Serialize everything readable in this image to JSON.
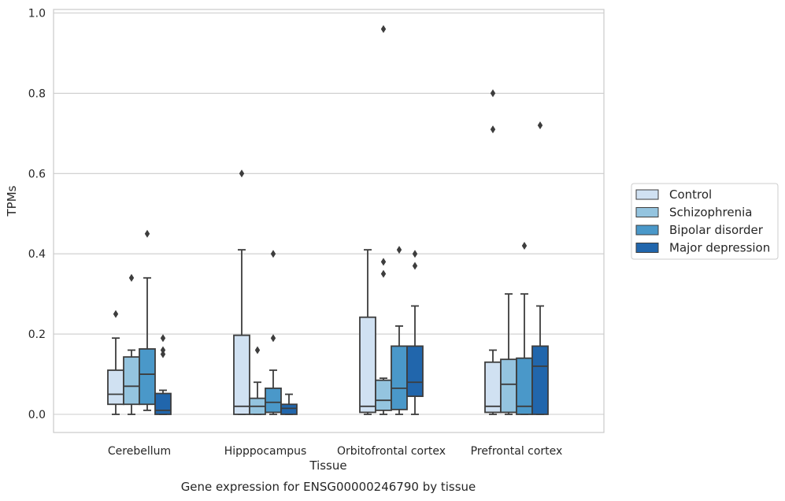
{
  "chart_data": {
    "type": "box",
    "xlabel": "Tissue",
    "ylabel": "TPMs",
    "caption": "Gene expression for ENSG00000246790 by tissue",
    "ylim": [
      -0.045,
      1.01
    ],
    "yticks": [
      0.0,
      0.2,
      0.4,
      0.6,
      0.8,
      1.0
    ],
    "ytick_labels": [
      "0.0",
      "0.2",
      "0.4",
      "0.6",
      "0.8",
      "1.0"
    ],
    "grid": "horizontal",
    "legend_position": "right",
    "categories": [
      "Cerebellum",
      "Hipppocampus",
      "Orbitofrontal cortex",
      "Prefrontal cortex"
    ],
    "series": [
      {
        "name": "Control",
        "color": "#d0e1f2",
        "boxes": [
          {
            "whisker_low": 0.0,
            "q1": 0.025,
            "median": 0.05,
            "q3": 0.11,
            "whisker_high": 0.19,
            "outliers": [
              0.25
            ]
          },
          {
            "whisker_low": 0.0,
            "q1": 0.0,
            "median": 0.02,
            "q3": 0.197,
            "whisker_high": 0.41,
            "outliers": [
              0.6
            ]
          },
          {
            "whisker_low": 0.0,
            "q1": 0.005,
            "median": 0.02,
            "q3": 0.242,
            "whisker_high": 0.41,
            "outliers": []
          },
          {
            "whisker_low": 0.0,
            "q1": 0.005,
            "median": 0.02,
            "q3": 0.13,
            "whisker_high": 0.16,
            "outliers": [
              0.71,
              0.8
            ]
          }
        ]
      },
      {
        "name": "Schizophrenia",
        "color": "#94c4df",
        "boxes": [
          {
            "whisker_low": 0.0,
            "q1": 0.025,
            "median": 0.07,
            "q3": 0.143,
            "whisker_high": 0.16,
            "outliers": [
              0.34
            ]
          },
          {
            "whisker_low": 0.0,
            "q1": 0.0,
            "median": 0.02,
            "q3": 0.04,
            "whisker_high": 0.08,
            "outliers": [
              0.16
            ]
          },
          {
            "whisker_low": 0.0,
            "q1": 0.01,
            "median": 0.035,
            "q3": 0.085,
            "whisker_high": 0.09,
            "outliers": [
              0.35,
              0.38,
              0.96
            ]
          },
          {
            "whisker_low": 0.0,
            "q1": 0.005,
            "median": 0.075,
            "q3": 0.137,
            "whisker_high": 0.3,
            "outliers": []
          }
        ]
      },
      {
        "name": "Bipolar disorder",
        "color": "#4a98c9",
        "boxes": [
          {
            "whisker_low": 0.01,
            "q1": 0.025,
            "median": 0.1,
            "q3": 0.163,
            "whisker_high": 0.34,
            "outliers": [
              0.45
            ]
          },
          {
            "whisker_low": 0.0,
            "q1": 0.005,
            "median": 0.03,
            "q3": 0.065,
            "whisker_high": 0.11,
            "outliers": [
              0.19,
              0.4
            ]
          },
          {
            "whisker_low": 0.0,
            "q1": 0.012,
            "median": 0.065,
            "q3": 0.17,
            "whisker_high": 0.22,
            "outliers": [
              0.41
            ]
          },
          {
            "whisker_low": 0.0,
            "q1": 0.0,
            "median": 0.02,
            "q3": 0.14,
            "whisker_high": 0.3,
            "outliers": [
              0.42
            ]
          }
        ]
      },
      {
        "name": "Major depression",
        "color": "#2166ac",
        "boxes": [
          {
            "whisker_low": 0.0,
            "q1": 0.0,
            "median": 0.01,
            "q3": 0.052,
            "whisker_high": 0.06,
            "outliers": [
              0.15,
              0.16,
              0.19
            ]
          },
          {
            "whisker_low": 0.0,
            "q1": 0.0,
            "median": 0.015,
            "q3": 0.025,
            "whisker_high": 0.05,
            "outliers": []
          },
          {
            "whisker_low": 0.0,
            "q1": 0.045,
            "median": 0.08,
            "q3": 0.17,
            "whisker_high": 0.27,
            "outliers": [
              0.37,
              0.4
            ]
          },
          {
            "whisker_low": 0.0,
            "q1": 0.0,
            "median": 0.12,
            "q3": 0.17,
            "whisker_high": 0.27,
            "outliers": [
              0.72
            ]
          }
        ]
      }
    ]
  }
}
